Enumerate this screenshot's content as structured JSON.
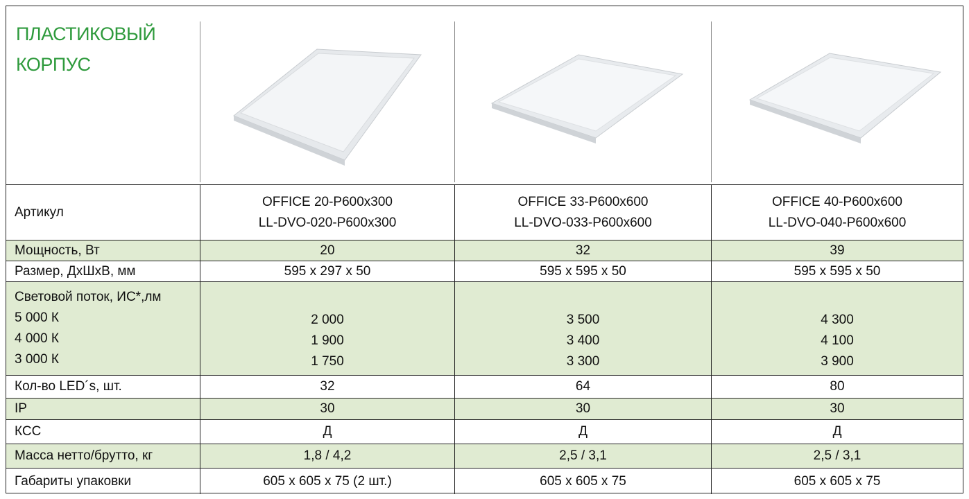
{
  "header": {
    "title": [
      "ПЛАСТИКОВЫЙ",
      "КОРПУС"
    ]
  },
  "table": {
    "rows": [
      {
        "label": [
          "Артикул"
        ],
        "cells": [
          [
            "OFFICE 20-P600x300",
            "LL-DVO-020-P600x300"
          ],
          [
            "OFFICE 33-P600x600",
            "LL-DVO-033-P600x600"
          ],
          [
            "OFFICE 40-P600x600",
            "LL-DVO-040-P600x600"
          ]
        ]
      },
      {
        "label": [
          "Мощность, Вт"
        ],
        "cells": [
          [
            "20"
          ],
          [
            "32"
          ],
          [
            "39"
          ]
        ]
      },
      {
        "label": [
          "Размер, ДхШхВ, мм"
        ],
        "cells": [
          [
            "595 x 297 x 50"
          ],
          [
            "595 x 595 x 50"
          ],
          [
            "595 x 595 x 50"
          ]
        ]
      },
      {
        "label": [
          "Световой поток, ИС*,лм",
          "5 000 К",
          "4 000 К",
          "3 000 К"
        ],
        "cells": [
          [
            "2 000",
            "1 900",
            "1 750"
          ],
          [
            "3 500",
            "3 400",
            "3 300"
          ],
          [
            "4 300",
            "4 100",
            "3 900"
          ]
        ]
      },
      {
        "label": [
          "Кол-во LED´s, шт."
        ],
        "cells": [
          [
            "32"
          ],
          [
            "64"
          ],
          [
            "80"
          ]
        ]
      },
      {
        "label": [
          "IP"
        ],
        "cells": [
          [
            "30"
          ],
          [
            "30"
          ],
          [
            "30"
          ]
        ]
      },
      {
        "label": [
          "КСС"
        ],
        "cells": [
          [
            "Д"
          ],
          [
            "Д"
          ],
          [
            "Д"
          ]
        ]
      },
      {
        "label": [
          "Масса нетто/брутто, кг"
        ],
        "cells": [
          [
            "1,8 / 4,2"
          ],
          [
            "2,5 / 3,1"
          ],
          [
            "2,5 / 3,1"
          ]
        ]
      },
      {
        "label": [
          "Габариты упаковки"
        ],
        "cells": [
          [
            "605 x 605 x 75 (2 шт.)"
          ],
          [
            "605 x 605 x 75"
          ],
          [
            "605 x 605 x 75"
          ]
        ]
      }
    ]
  }
}
